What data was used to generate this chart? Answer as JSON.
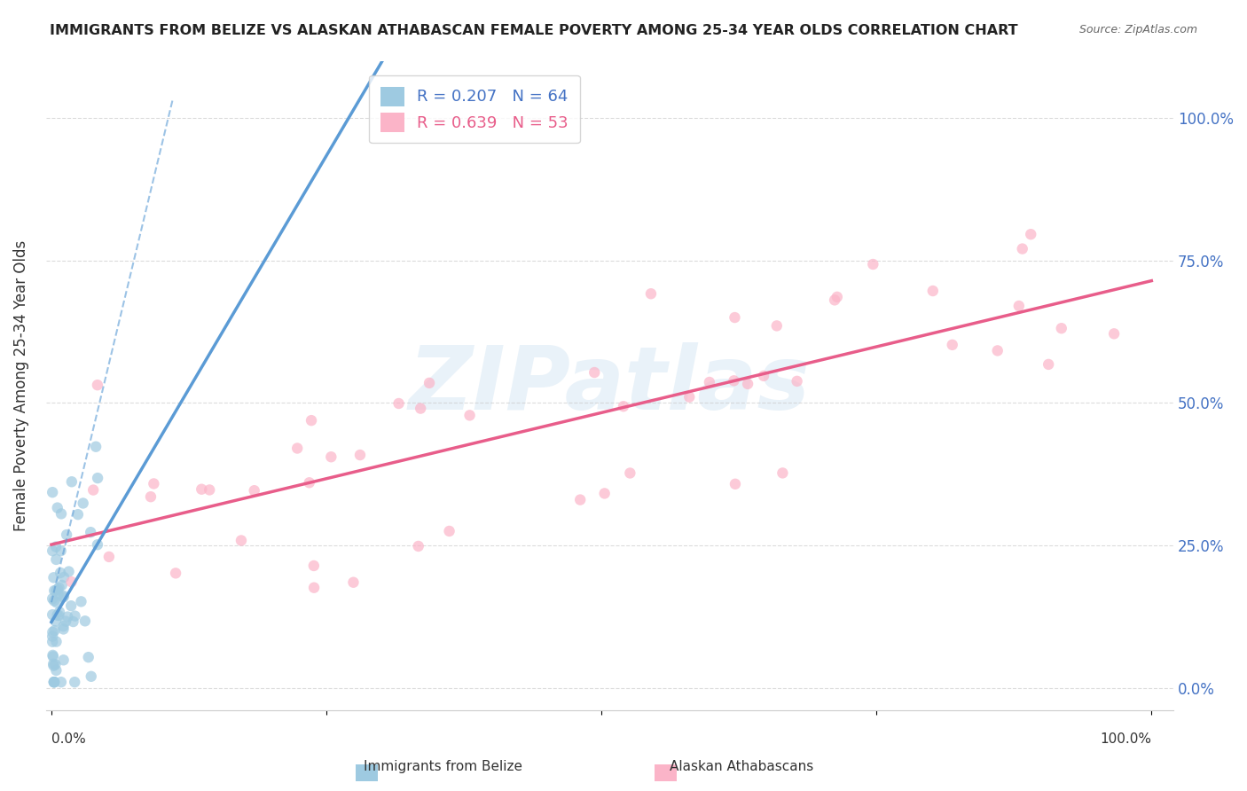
{
  "title": "IMMIGRANTS FROM BELIZE VS ALASKAN ATHABASCAN FEMALE POVERTY AMONG 25-34 YEAR OLDS CORRELATION CHART",
  "source": "Source: ZipAtlas.com",
  "ylabel": "Female Poverty Among 25-34 Year Olds",
  "ytick_labels": [
    "0.0%",
    "25.0%",
    "50.0%",
    "75.0%",
    "100.0%"
  ],
  "ytick_values": [
    0,
    0.25,
    0.5,
    0.75,
    1.0
  ],
  "legend_entries": [
    {
      "label": "R = 0.207   N = 64",
      "color": "#6baed6"
    },
    {
      "label": "R = 0.639   N = 53",
      "color": "#f768a1"
    }
  ],
  "watermark": "ZIPatlas",
  "background_color": "#ffffff",
  "grid_color": "#cccccc",
  "blue_line_color": "#5b9bd5",
  "pink_line_color": "#e85d8a",
  "blue_dot_color": "#9ecae1",
  "pink_dot_color": "#fbb4c8",
  "dot_size": 80,
  "dot_alpha": 0.7
}
